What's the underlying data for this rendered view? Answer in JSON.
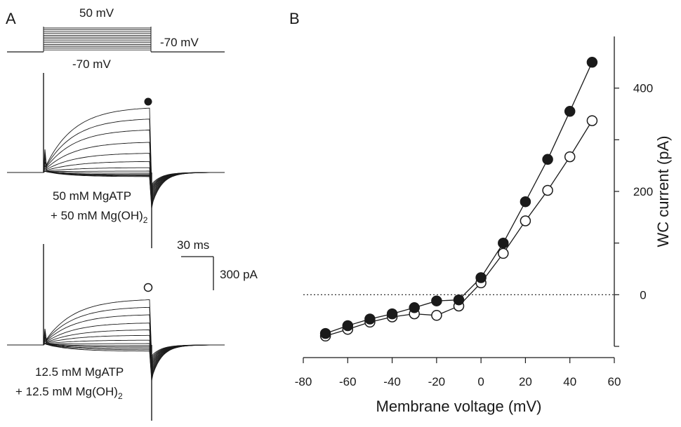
{
  "panel_a": {
    "letter": "A",
    "protocol": {
      "step_label": "50 mV",
      "hold_label_right": "-70 mV",
      "hold_label_bottom": "-70 mV"
    },
    "trace1": {
      "line1": "50 mM MgATP",
      "line2": "+ 50 mM Mg(OH)",
      "line2_sub": "2",
      "marker": "filled"
    },
    "trace2": {
      "line1": "12.5 mM MgATP",
      "line2": "+ 12.5 mM Mg(OH)",
      "line2_sub": "2",
      "marker": "open"
    },
    "scale_bar": {
      "time_label": "30 ms",
      "current_label": "300 pA"
    }
  },
  "chart_data": {
    "panel": "B",
    "type": "line",
    "xlabel": "Membrane voltage (mV)",
    "ylabel": "WC current (pA)",
    "xlim": [
      -80,
      60
    ],
    "ylim": [
      -100,
      500
    ],
    "x_ticks": [
      "-80",
      "-60",
      "-40",
      "-20",
      "0",
      "20",
      "40",
      "60"
    ],
    "y_ticks": [
      "0",
      "200",
      "400"
    ],
    "y_minor_ticks": [
      -100,
      100,
      300
    ],
    "zero_line": "dotted",
    "grid": false,
    "x": [
      -70,
      -60,
      -50,
      -40,
      -30,
      -20,
      -10,
      0,
      10,
      20,
      30,
      40,
      50
    ],
    "series": [
      {
        "marker": "filled",
        "color": "#1a1a1a",
        "values": [
          -75,
          -60,
          -47,
          -37,
          -25,
          -12,
          -10,
          33,
          100,
          180,
          262,
          355,
          450
        ]
      },
      {
        "marker": "open",
        "color": "#1a1a1a",
        "values": [
          -80,
          -67,
          -53,
          -43,
          -37,
          -40,
          -22,
          23,
          80,
          143,
          202,
          267,
          337
        ]
      }
    ]
  }
}
